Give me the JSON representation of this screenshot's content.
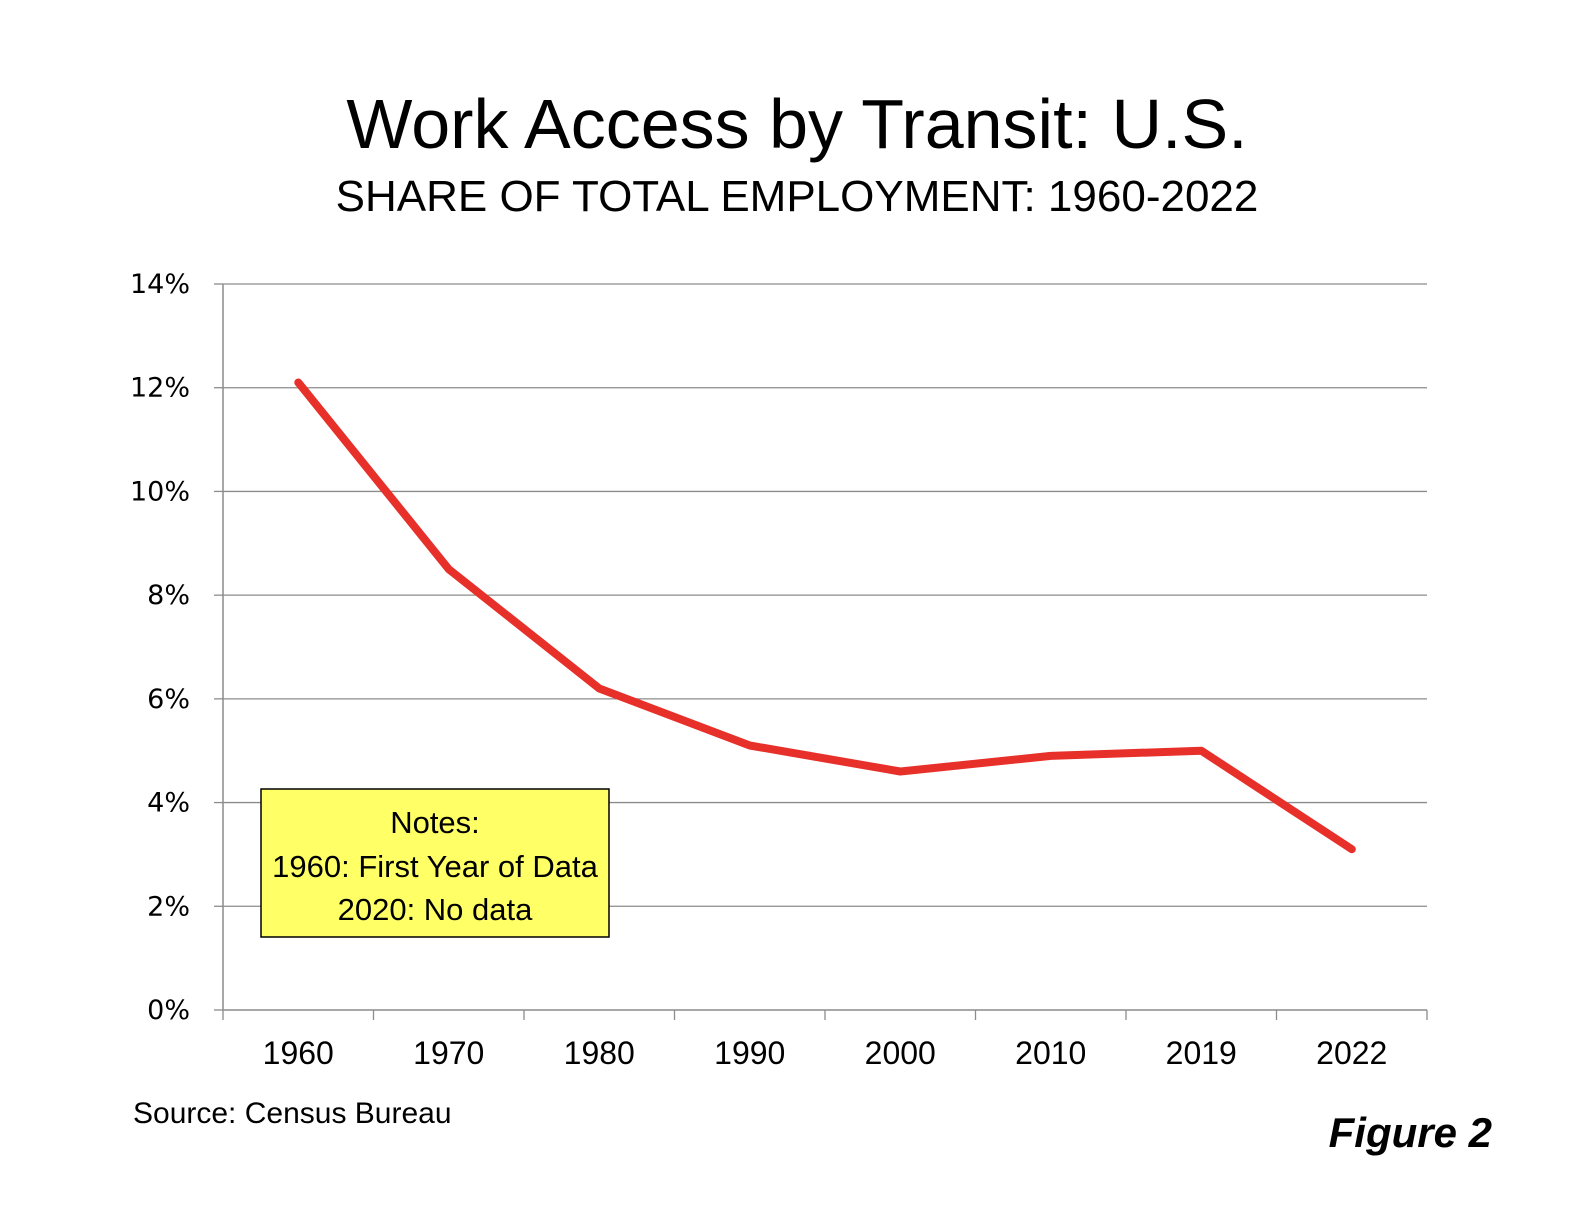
{
  "chart_data": {
    "type": "line",
    "title": "Work Access by Transit: U.S.",
    "subtitle": "SHARE OF TOTAL EMPLOYMENT: 1960-2022",
    "categories": [
      "1960",
      "1970",
      "1980",
      "1990",
      "2000",
      "2010",
      "2019",
      "2022"
    ],
    "series": [
      {
        "values": [
          12.1,
          8.5,
          6.2,
          5.1,
          4.6,
          4.9,
          5.0,
          3.1
        ],
        "color": "#e8302a"
      }
    ],
    "ylim": [
      0,
      14
    ],
    "yticks": [
      0,
      2,
      4,
      6,
      8,
      10,
      12,
      14
    ],
    "ytick_labels": [
      "0%",
      "2%",
      "4%",
      "6%",
      "8%",
      "10%",
      "12%",
      "14%"
    ],
    "grid": true,
    "notes": {
      "lines": [
        "Notes:",
        "1960: First Year of Data",
        "2020: No data"
      ],
      "background": "#ffff66"
    },
    "source": "Source: Census Bureau",
    "figure_label": "Figure 2"
  }
}
